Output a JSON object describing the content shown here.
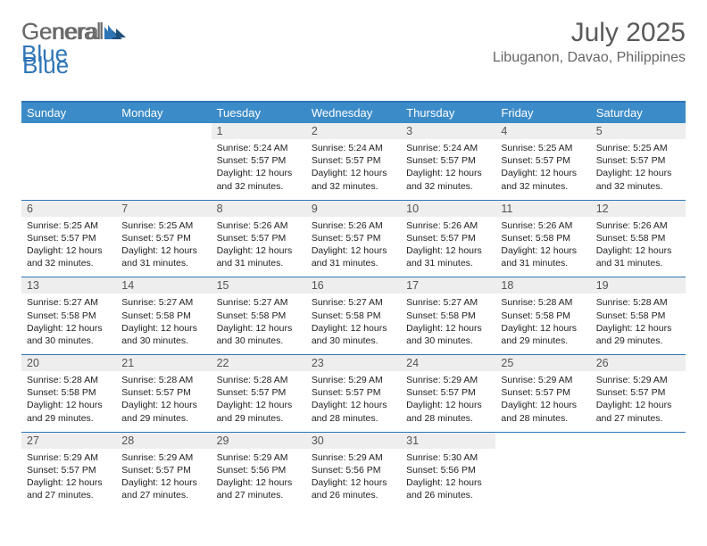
{
  "logo": {
    "text_general": "General",
    "text_blue": "Blue"
  },
  "header": {
    "month_title": "July 2025",
    "location": "Libuganon, Davao, Philippines"
  },
  "colors": {
    "header_bg": "#3b8bc8",
    "border": "#2e75b6",
    "numrow_bg": "#eeeeee",
    "text_dark": "#222222",
    "text_muted": "#5a5a5a"
  },
  "weekdays": [
    "Sunday",
    "Monday",
    "Tuesday",
    "Wednesday",
    "Thursday",
    "Friday",
    "Saturday"
  ],
  "weeks": [
    {
      "days": [
        {
          "n": "",
          "sunrise": "",
          "sunset": "",
          "daylight": ""
        },
        {
          "n": "",
          "sunrise": "",
          "sunset": "",
          "daylight": ""
        },
        {
          "n": "1",
          "sunrise": "Sunrise: 5:24 AM",
          "sunset": "Sunset: 5:57 PM",
          "daylight": "Daylight: 12 hours and 32 minutes."
        },
        {
          "n": "2",
          "sunrise": "Sunrise: 5:24 AM",
          "sunset": "Sunset: 5:57 PM",
          "daylight": "Daylight: 12 hours and 32 minutes."
        },
        {
          "n": "3",
          "sunrise": "Sunrise: 5:24 AM",
          "sunset": "Sunset: 5:57 PM",
          "daylight": "Daylight: 12 hours and 32 minutes."
        },
        {
          "n": "4",
          "sunrise": "Sunrise: 5:25 AM",
          "sunset": "Sunset: 5:57 PM",
          "daylight": "Daylight: 12 hours and 32 minutes."
        },
        {
          "n": "5",
          "sunrise": "Sunrise: 5:25 AM",
          "sunset": "Sunset: 5:57 PM",
          "daylight": "Daylight: 12 hours and 32 minutes."
        }
      ]
    },
    {
      "days": [
        {
          "n": "6",
          "sunrise": "Sunrise: 5:25 AM",
          "sunset": "Sunset: 5:57 PM",
          "daylight": "Daylight: 12 hours and 32 minutes."
        },
        {
          "n": "7",
          "sunrise": "Sunrise: 5:25 AM",
          "sunset": "Sunset: 5:57 PM",
          "daylight": "Daylight: 12 hours and 31 minutes."
        },
        {
          "n": "8",
          "sunrise": "Sunrise: 5:26 AM",
          "sunset": "Sunset: 5:57 PM",
          "daylight": "Daylight: 12 hours and 31 minutes."
        },
        {
          "n": "9",
          "sunrise": "Sunrise: 5:26 AM",
          "sunset": "Sunset: 5:57 PM",
          "daylight": "Daylight: 12 hours and 31 minutes."
        },
        {
          "n": "10",
          "sunrise": "Sunrise: 5:26 AM",
          "sunset": "Sunset: 5:57 PM",
          "daylight": "Daylight: 12 hours and 31 minutes."
        },
        {
          "n": "11",
          "sunrise": "Sunrise: 5:26 AM",
          "sunset": "Sunset: 5:58 PM",
          "daylight": "Daylight: 12 hours and 31 minutes."
        },
        {
          "n": "12",
          "sunrise": "Sunrise: 5:26 AM",
          "sunset": "Sunset: 5:58 PM",
          "daylight": "Daylight: 12 hours and 31 minutes."
        }
      ]
    },
    {
      "days": [
        {
          "n": "13",
          "sunrise": "Sunrise: 5:27 AM",
          "sunset": "Sunset: 5:58 PM",
          "daylight": "Daylight: 12 hours and 30 minutes."
        },
        {
          "n": "14",
          "sunrise": "Sunrise: 5:27 AM",
          "sunset": "Sunset: 5:58 PM",
          "daylight": "Daylight: 12 hours and 30 minutes."
        },
        {
          "n": "15",
          "sunrise": "Sunrise: 5:27 AM",
          "sunset": "Sunset: 5:58 PM",
          "daylight": "Daylight: 12 hours and 30 minutes."
        },
        {
          "n": "16",
          "sunrise": "Sunrise: 5:27 AM",
          "sunset": "Sunset: 5:58 PM",
          "daylight": "Daylight: 12 hours and 30 minutes."
        },
        {
          "n": "17",
          "sunrise": "Sunrise: 5:27 AM",
          "sunset": "Sunset: 5:58 PM",
          "daylight": "Daylight: 12 hours and 30 minutes."
        },
        {
          "n": "18",
          "sunrise": "Sunrise: 5:28 AM",
          "sunset": "Sunset: 5:58 PM",
          "daylight": "Daylight: 12 hours and 29 minutes."
        },
        {
          "n": "19",
          "sunrise": "Sunrise: 5:28 AM",
          "sunset": "Sunset: 5:58 PM",
          "daylight": "Daylight: 12 hours and 29 minutes."
        }
      ]
    },
    {
      "days": [
        {
          "n": "20",
          "sunrise": "Sunrise: 5:28 AM",
          "sunset": "Sunset: 5:58 PM",
          "daylight": "Daylight: 12 hours and 29 minutes."
        },
        {
          "n": "21",
          "sunrise": "Sunrise: 5:28 AM",
          "sunset": "Sunset: 5:57 PM",
          "daylight": "Daylight: 12 hours and 29 minutes."
        },
        {
          "n": "22",
          "sunrise": "Sunrise: 5:28 AM",
          "sunset": "Sunset: 5:57 PM",
          "daylight": "Daylight: 12 hours and 29 minutes."
        },
        {
          "n": "23",
          "sunrise": "Sunrise: 5:29 AM",
          "sunset": "Sunset: 5:57 PM",
          "daylight": "Daylight: 12 hours and 28 minutes."
        },
        {
          "n": "24",
          "sunrise": "Sunrise: 5:29 AM",
          "sunset": "Sunset: 5:57 PM",
          "daylight": "Daylight: 12 hours and 28 minutes."
        },
        {
          "n": "25",
          "sunrise": "Sunrise: 5:29 AM",
          "sunset": "Sunset: 5:57 PM",
          "daylight": "Daylight: 12 hours and 28 minutes."
        },
        {
          "n": "26",
          "sunrise": "Sunrise: 5:29 AM",
          "sunset": "Sunset: 5:57 PM",
          "daylight": "Daylight: 12 hours and 27 minutes."
        }
      ]
    },
    {
      "days": [
        {
          "n": "27",
          "sunrise": "Sunrise: 5:29 AM",
          "sunset": "Sunset: 5:57 PM",
          "daylight": "Daylight: 12 hours and 27 minutes."
        },
        {
          "n": "28",
          "sunrise": "Sunrise: 5:29 AM",
          "sunset": "Sunset: 5:57 PM",
          "daylight": "Daylight: 12 hours and 27 minutes."
        },
        {
          "n": "29",
          "sunrise": "Sunrise: 5:29 AM",
          "sunset": "Sunset: 5:56 PM",
          "daylight": "Daylight: 12 hours and 27 minutes."
        },
        {
          "n": "30",
          "sunrise": "Sunrise: 5:29 AM",
          "sunset": "Sunset: 5:56 PM",
          "daylight": "Daylight: 12 hours and 26 minutes."
        },
        {
          "n": "31",
          "sunrise": "Sunrise: 5:30 AM",
          "sunset": "Sunset: 5:56 PM",
          "daylight": "Daylight: 12 hours and 26 minutes."
        },
        {
          "n": "",
          "sunrise": "",
          "sunset": "",
          "daylight": ""
        },
        {
          "n": "",
          "sunrise": "",
          "sunset": "",
          "daylight": ""
        }
      ]
    }
  ]
}
